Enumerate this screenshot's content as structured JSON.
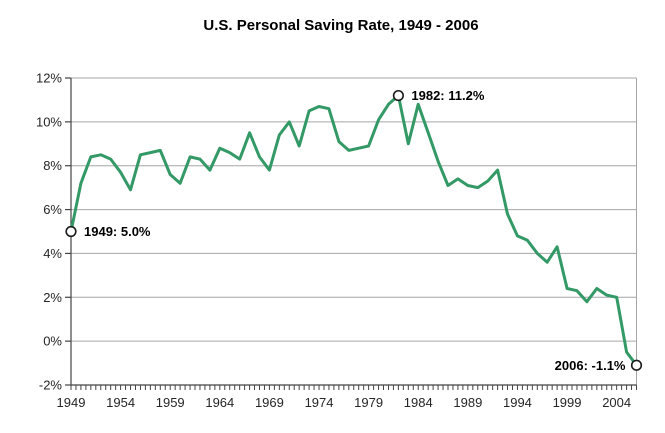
{
  "chart_data": {
    "type": "line",
    "title": "U.S. Personal Saving Rate, 1949 - 2006",
    "xlabel": "",
    "ylabel": "",
    "years": [
      1949,
      1950,
      1951,
      1952,
      1953,
      1954,
      1955,
      1956,
      1957,
      1958,
      1959,
      1960,
      1961,
      1962,
      1963,
      1964,
      1965,
      1966,
      1967,
      1968,
      1969,
      1970,
      1971,
      1972,
      1973,
      1974,
      1975,
      1976,
      1977,
      1978,
      1979,
      1980,
      1981,
      1982,
      1983,
      1984,
      1985,
      1986,
      1987,
      1988,
      1989,
      1990,
      1991,
      1992,
      1993,
      1994,
      1995,
      1996,
      1997,
      1998,
      1999,
      2000,
      2001,
      2002,
      2003,
      2004,
      2005,
      2006
    ],
    "values": [
      5.0,
      7.2,
      8.4,
      8.5,
      8.3,
      7.7,
      6.9,
      8.5,
      8.6,
      8.7,
      7.6,
      7.2,
      8.4,
      8.3,
      7.8,
      8.8,
      8.6,
      8.3,
      9.5,
      8.4,
      7.8,
      9.4,
      10.0,
      8.9,
      10.5,
      10.7,
      10.6,
      9.1,
      8.7,
      8.8,
      8.9,
      10.1,
      10.8,
      11.2,
      9.0,
      10.8,
      9.5,
      8.2,
      7.1,
      7.4,
      7.1,
      7.0,
      7.3,
      7.8,
      5.8,
      4.8,
      4.6,
      4.0,
      3.6,
      4.3,
      2.4,
      2.3,
      1.8,
      2.4,
      2.1,
      2.0,
      -0.5,
      -1.1
    ],
    "series_name": "U.S. personal saving rate (percent)",
    "ylim": [
      -2,
      12
    ],
    "ytick_values": [
      12,
      10,
      8,
      6,
      4,
      2,
      0,
      -2
    ],
    "ytick_labels": [
      "12%",
      "10%",
      "8%",
      "6%",
      "4%",
      "2%",
      "0%",
      "-2%"
    ],
    "xtick_labels": [
      "1949",
      "1954",
      "1959",
      "1964",
      "1969",
      "1974",
      "1979",
      "1984",
      "1989",
      "1994",
      "1999",
      "2004"
    ],
    "grid": "horizontal",
    "legend": "none",
    "annotations": [
      {
        "year": 1949,
        "value": 5.0,
        "label": "1949: 5.0%",
        "side": "right"
      },
      {
        "year": 1982,
        "value": 11.2,
        "label": "1982: 11.2%",
        "side": "right"
      },
      {
        "year": 2006,
        "value": -1.1,
        "label": "2006: -1.1%",
        "side": "left"
      }
    ],
    "colors": {
      "line": "#339966",
      "grid": "#a6a6a6",
      "axis": "#444444",
      "tick_text": "#262626",
      "annotation_text": "#000000",
      "marker_fill": "#ffffff",
      "marker_stroke": "#1a1a1a",
      "background": "#ffffff"
    }
  }
}
